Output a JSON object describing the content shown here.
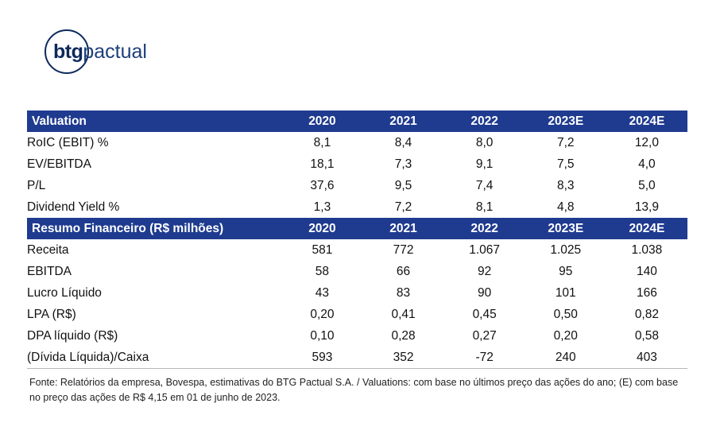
{
  "brand": {
    "name_strong": "btg",
    "name_light": "pactual"
  },
  "valuation": {
    "header": [
      "Valuation",
      "2020",
      "2021",
      "2022",
      "2023E",
      "2024E"
    ],
    "rows": [
      {
        "label": "RoIC (EBIT) %",
        "values": [
          "8,1",
          "8,4",
          "8,0",
          "7,2",
          "12,0"
        ]
      },
      {
        "label": "EV/EBITDA",
        "values": [
          "18,1",
          "7,3",
          "9,1",
          "7,5",
          "4,0"
        ]
      },
      {
        "label": "P/L",
        "values": [
          "37,6",
          "9,5",
          "7,4",
          "8,3",
          "5,0"
        ]
      },
      {
        "label": "Dividend Yield %",
        "values": [
          "1,3",
          "7,2",
          "8,1",
          "4,8",
          "13,9"
        ]
      }
    ]
  },
  "financial_summary": {
    "header": [
      "Resumo Financeiro (R$ milhões)",
      "2020",
      "2021",
      "2022",
      "2023E",
      "2024E"
    ],
    "rows": [
      {
        "label": "Receita",
        "values": [
          "581",
          "772",
          "1.067",
          "1.025",
          "1.038"
        ]
      },
      {
        "label": "EBITDA",
        "values": [
          "58",
          "66",
          "92",
          "95",
          "140"
        ]
      },
      {
        "label": "Lucro Líquido",
        "values": [
          "43",
          "83",
          "90",
          "101",
          "166"
        ]
      },
      {
        "label": "LPA (R$)",
        "values": [
          "0,20",
          "0,41",
          "0,45",
          "0,50",
          "0,82"
        ]
      },
      {
        "label": "DPA líquido (R$)",
        "values": [
          "0,10",
          "0,28",
          "0,27",
          "0,20",
          "0,58"
        ]
      },
      {
        "label": "(Dívida Líquida)/Caixa",
        "values": [
          "593",
          "352",
          "-72",
          "240",
          "403"
        ]
      }
    ]
  },
  "footnote": "Fonte: Relatórios da empresa, Bovespa, estimativas do BTG Pactual S.A. / Valuations: com base no últimos preço das ações do ano; (E) com base no preço das ações de R$ 4,15 em 01 de junho de 2023.",
  "colors": {
    "header_bg": "#1f3b8f",
    "brand_navy": "#0d2a5c"
  }
}
